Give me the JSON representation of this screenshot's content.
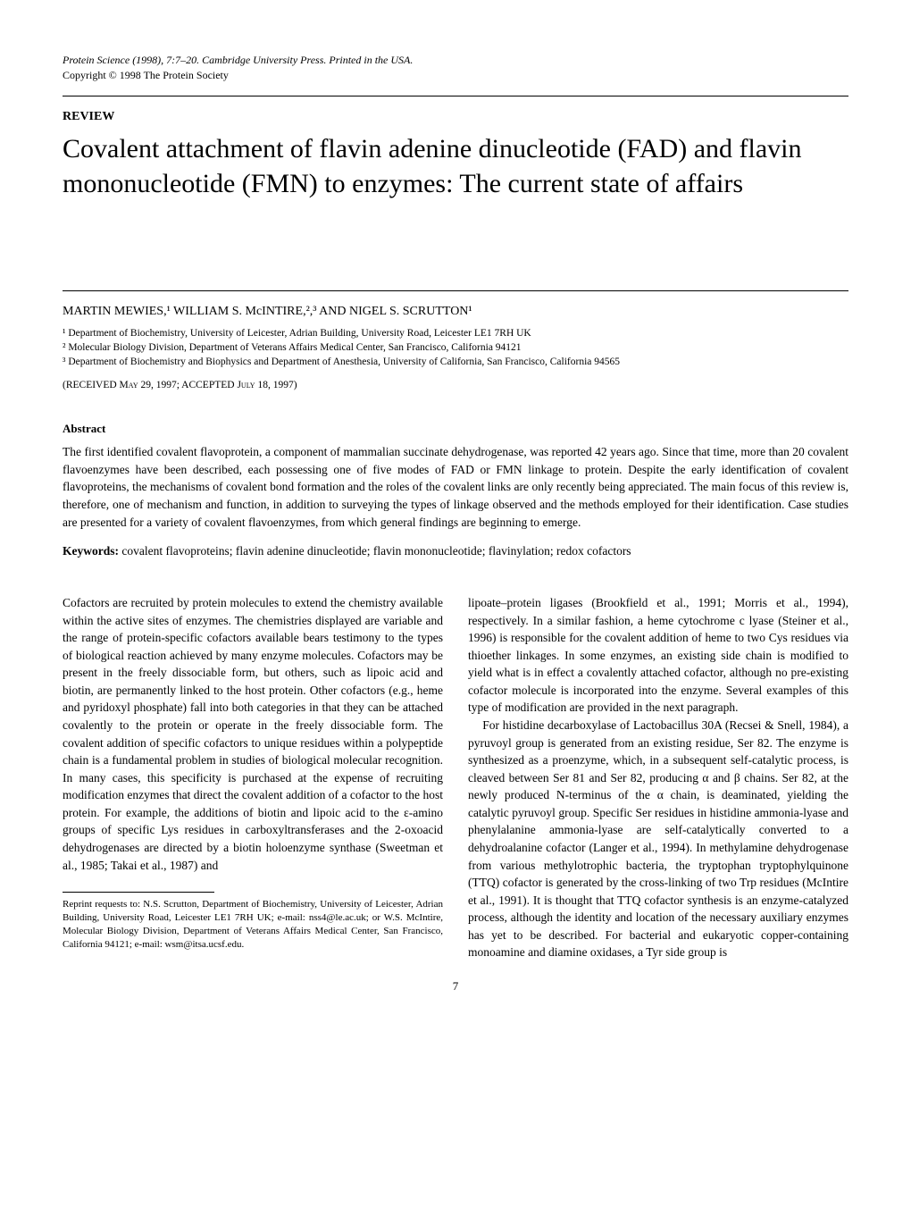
{
  "header": {
    "journal": "Protein Science (1998), 7:7–20. Cambridge University Press. Printed in the USA.",
    "copyright": "Copyright © 1998 The Protein Society"
  },
  "review_label": "REVIEW",
  "title": "Covalent attachment of flavin adenine dinucleotide (FAD) and flavin mononucleotide (FMN) to enzymes: The current state of affairs",
  "authors": "MARTIN MEWIES,¹ WILLIAM S. McINTIRE,²,³ AND NIGEL S. SCRUTTON¹",
  "affiliations": [
    "¹ Department of Biochemistry, University of Leicester, Adrian Building, University Road, Leicester LE1 7RH UK",
    "² Molecular Biology Division, Department of Veterans Affairs Medical Center, San Francisco, California 94121",
    "³ Department of Biochemistry and Biophysics and Department of Anesthesia, University of California, San Francisco, California 94565"
  ],
  "dates": "(RECEIVED May 29, 1997; ACCEPTED July 18, 1997)",
  "abstract": {
    "heading": "Abstract",
    "text": "The first identified covalent flavoprotein, a component of mammalian succinate dehydrogenase, was reported 42 years ago. Since that time, more than 20 covalent flavoenzymes have been described, each possessing one of five modes of FAD or FMN linkage to protein. Despite the early identification of covalent flavoproteins, the mechanisms of covalent bond formation and the roles of the covalent links are only recently being appreciated. The main focus of this review is, therefore, one of mechanism and function, in addition to surveying the types of linkage observed and the methods employed for their identification. Case studies are presented for a variety of covalent flavoenzymes, from which general findings are beginning to emerge."
  },
  "keywords": {
    "label": "Keywords:",
    "text": " covalent flavoproteins; flavin adenine dinucleotide; flavin mononucleotide; flavinylation; redox cofactors"
  },
  "body": {
    "left_p1": "Cofactors are recruited by protein molecules to extend the chemistry available within the active sites of enzymes. The chemistries displayed are variable and the range of protein-specific cofactors available bears testimony to the types of biological reaction achieved by many enzyme molecules. Cofactors may be present in the freely dissociable form, but others, such as lipoic acid and biotin, are permanently linked to the host protein. Other cofactors (e.g., heme and pyridoxyl phosphate) fall into both categories in that they can be attached covalently to the protein or operate in the freely dissociable form. The covalent addition of specific cofactors to unique residues within a polypeptide chain is a fundamental problem in studies of biological molecular recognition. In many cases, this specificity is purchased at the expense of recruiting modification enzymes that direct the covalent addition of a cofactor to the host protein. For example, the additions of biotin and lipoic acid to the ε-amino groups of specific Lys residues in carboxyltransferases and the 2-oxoacid dehydrogenases are directed by a biotin holoenzyme synthase (Sweetman et al., 1985; Takai et al., 1987) and",
    "right_p1": "lipoate–protein ligases (Brookfield et al., 1991; Morris et al., 1994), respectively. In a similar fashion, a heme cytochrome c lyase (Steiner et al., 1996) is responsible for the covalent addition of heme to two Cys residues via thioether linkages. In some enzymes, an existing side chain is modified to yield what is in effect a covalently attached cofactor, although no pre-existing cofactor molecule is incorporated into the enzyme. Several examples of this type of modification are provided in the next paragraph.",
    "right_p2": "For histidine decarboxylase of Lactobacillus 30A (Recsei & Snell, 1984), a pyruvoyl group is generated from an existing residue, Ser 82. The enzyme is synthesized as a proenzyme, which, in a subsequent self-catalytic process, is cleaved between Ser 81 and Ser 82, producing α and β chains. Ser 82, at the newly produced N-terminus of the α chain, is deaminated, yielding the catalytic pyruvoyl group. Specific Ser residues in histidine ammonia-lyase and phenylalanine ammonia-lyase are self-catalytically converted to a dehydroalanine cofactor (Langer et al., 1994). In methylamine dehydrogenase from various methylotrophic bacteria, the tryptophan tryptophylquinone (TTQ) cofactor is generated by the cross-linking of two Trp residues (McIntire et al., 1991). It is thought that TTQ cofactor synthesis is an enzyme-catalyzed process, although the identity and location of the necessary auxiliary enzymes has yet to be described. For bacterial and eukaryotic copper-containing monoamine and diamine oxidases, a Tyr side group is"
  },
  "reprint": "Reprint requests to: N.S. Scrutton, Department of Biochemistry, University of Leicester, Adrian Building, University Road, Leicester LE1 7RH UK; e-mail: nss4@le.ac.uk; or W.S. McIntire, Molecular Biology Division, Department of Veterans Affairs Medical Center, San Francisco, California 94121; e-mail: wsm@itsa.ucsf.edu.",
  "page_number": "7"
}
